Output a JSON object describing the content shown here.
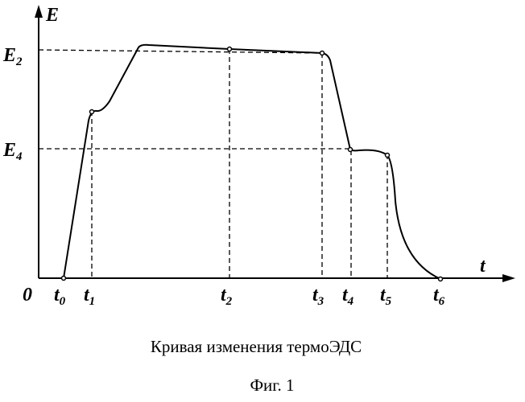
{
  "axes": {
    "y_label": "E",
    "x_label": "t",
    "origin_label": "0"
  },
  "level_labels": [
    {
      "base": "E",
      "sub": "2"
    },
    {
      "base": "E",
      "sub": "4"
    }
  ],
  "time_labels": [
    {
      "base": "t",
      "sub": "0"
    },
    {
      "base": "t",
      "sub": "1"
    },
    {
      "base": "t",
      "sub": "2"
    },
    {
      "base": "t",
      "sub": "3"
    },
    {
      "base": "t",
      "sub": "4"
    },
    {
      "base": "t",
      "sub": "5"
    },
    {
      "base": "t",
      "sub": "6"
    }
  ],
  "caption": "Кривая изменения термоЭДС",
  "figure_label": "Фиг. 1"
}
